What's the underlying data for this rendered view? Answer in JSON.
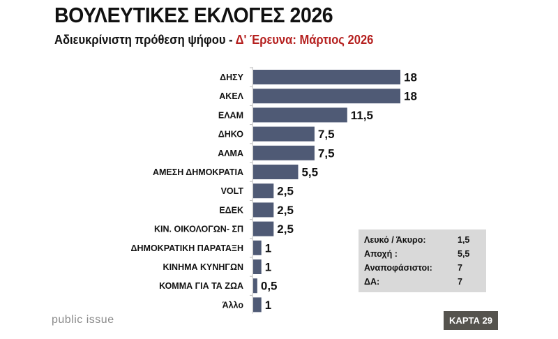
{
  "header": {
    "title": "ΒΟΥΛΕΥΤΙΚΕΣ ΕΚΛΟΓΕΣ 2026",
    "subtitle_main": "Αδιευκρίνιστη πρόθεση ψήφου - ",
    "subtitle_highlight": "Δ' Έρευνα:  Μάρτιος 2026"
  },
  "chart_data": {
    "type": "bar",
    "orientation": "horizontal",
    "title": "",
    "xlabel": "",
    "ylabel": "",
    "categories": [
      "ΔΗΣΥ",
      "ΑΚΕΛ",
      "ΕΛΑΜ",
      "ΔΗΚΟ",
      "ΑΛΜΑ",
      "ΑΜΕΣΗ ΔΗΜΟΚΡΑΤΙΑ",
      "VOLT",
      "ΕΔΕΚ",
      "ΚΙΝ. ΟΙΚΟΛΟΓΩΝ- ΣΠ",
      "ΔΗΜΟΚΡΑΤΙΚΗ ΠΑΡΑΤΑΞΗ",
      "ΚΙΝΗΜΑ ΚΥΝΗΓΩΝ",
      "ΚΟΜΜΑ ΓΙΑ ΤΑ ΖΩΑ",
      "Άλλο"
    ],
    "values": [
      18,
      18,
      11.5,
      7.5,
      7.5,
      5.5,
      2.5,
      2.5,
      2.5,
      1,
      1,
      0.5,
      1
    ],
    "value_labels": [
      "18",
      "18",
      "11,5",
      "7,5",
      "7,5",
      "5,5",
      "2,5",
      "2,5",
      "2,5",
      "1",
      "1",
      "0,5",
      "1"
    ],
    "xlim": [
      0,
      18
    ],
    "grid": false,
    "bar_color": "#4f5a75"
  },
  "summary": [
    {
      "label": "Λευκό / Άκυρο:",
      "value": "1,5"
    },
    {
      "label": "Αποχή :",
      "value": "5,5"
    },
    {
      "label": "Αναποφάσιστοι:",
      "value": "7"
    },
    {
      "label": "ΔΑ:",
      "value": "7"
    }
  ],
  "footer": {
    "brand": "public issue",
    "badge": "ΚΑΡΤΑ 29"
  }
}
